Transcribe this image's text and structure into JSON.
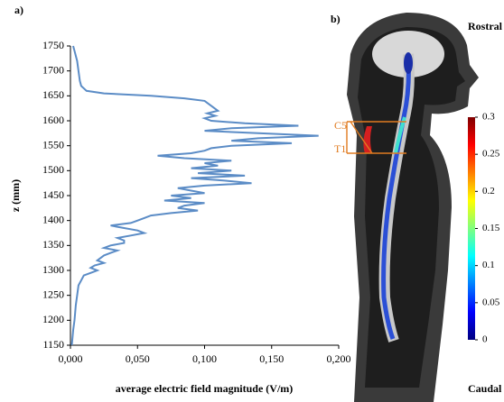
{
  "chart_data": [
    {
      "type": "line",
      "orientation": "horizontal",
      "panel_label": "a)",
      "xlabel": "average electric field magnitude (V/m)",
      "ylabel": "z (mm)",
      "x": [
        1750,
        1740,
        1720,
        1700,
        1680,
        1670,
        1660,
        1655,
        1650,
        1645,
        1640,
        1630,
        1620,
        1615,
        1610,
        1605,
        1600,
        1595,
        1590,
        1585,
        1580,
        1575,
        1570,
        1565,
        1560,
        1555,
        1550,
        1545,
        1540,
        1535,
        1530,
        1525,
        1520,
        1515,
        1510,
        1505,
        1500,
        1495,
        1490,
        1485,
        1480,
        1475,
        1470,
        1465,
        1460,
        1455,
        1450,
        1445,
        1440,
        1435,
        1430,
        1425,
        1420,
        1415,
        1410,
        1405,
        1400,
        1395,
        1390,
        1385,
        1380,
        1375,
        1370,
        1365,
        1360,
        1355,
        1350,
        1345,
        1340,
        1335,
        1330,
        1320,
        1315,
        1310,
        1305,
        1300,
        1295,
        1290,
        1280,
        1270,
        1250,
        1230,
        1200,
        1180,
        1150
      ],
      "series": [
        {
          "color": "#5b8cc6",
          "values": [
            0.002,
            0.003,
            0.005,
            0.006,
            0.007,
            0.008,
            0.012,
            0.025,
            0.06,
            0.085,
            0.1,
            0.105,
            0.11,
            0.102,
            0.108,
            0.1,
            0.105,
            0.13,
            0.17,
            0.12,
            0.1,
            0.14,
            0.185,
            0.14,
            0.12,
            0.165,
            0.12,
            0.105,
            0.1,
            0.09,
            0.065,
            0.085,
            0.12,
            0.1,
            0.11,
            0.09,
            0.12,
            0.095,
            0.13,
            0.09,
            0.115,
            0.135,
            0.1,
            0.08,
            0.09,
            0.1,
            0.075,
            0.09,
            0.07,
            0.1,
            0.085,
            0.08,
            0.095,
            0.075,
            0.06,
            0.055,
            0.05,
            0.045,
            0.03,
            0.04,
            0.05,
            0.055,
            0.045,
            0.035,
            0.04,
            0.04,
            0.03,
            0.025,
            0.035,
            0.03,
            0.025,
            0.02,
            0.025,
            0.018,
            0.015,
            0.02,
            0.015,
            0.01,
            0.008,
            0.006,
            0.005,
            0.004,
            0.003,
            0.002,
            0.001
          ]
        }
      ],
      "xlim": [
        0,
        0.2
      ],
      "xticks": [
        {
          "value": 0,
          "label": "0,000"
        },
        {
          "value": 0.05,
          "label": "0,050"
        },
        {
          "value": 0.1,
          "label": "0,100"
        },
        {
          "value": 0.15,
          "label": "0,150"
        },
        {
          "value": 0.2,
          "label": "0,200"
        }
      ],
      "ylim": [
        1150,
        1750
      ],
      "yticks": [
        1150,
        1200,
        1250,
        1300,
        1350,
        1400,
        1450,
        1500,
        1550,
        1600,
        1650,
        1700,
        1750
      ]
    },
    {
      "type": "colorbar",
      "panel_label": "b)",
      "top_label": "Rostral",
      "bottom_label": "Caudal",
      "markers": [
        "C5",
        "T1"
      ],
      "clim": [
        0,
        0.3
      ],
      "colors": [
        "#00007f",
        "#0000ff",
        "#007fff",
        "#00ffff",
        "#7fff7f",
        "#ffff00",
        "#ff7f00",
        "#ff0000",
        "#7f0000"
      ],
      "ticks": [
        0,
        0.05,
        0.1,
        0.15,
        0.2,
        0.25,
        0.3
      ]
    }
  ]
}
